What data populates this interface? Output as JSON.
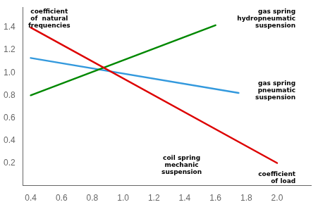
{
  "chart_data": {
    "type": "line",
    "series": [
      {
        "color": "#dd0000",
        "x": [
          0.4,
          2.0
        ],
        "values": [
          1.4,
          0.2
        ]
      },
      {
        "color": "#008800",
        "x": [
          0.4,
          1.6
        ],
        "values": [
          0.8,
          1.42
        ]
      },
      {
        "color": "#3399dd",
        "x": [
          0.4,
          1.75
        ],
        "values": [
          1.13,
          0.82
        ]
      }
    ],
    "xlim": [
      0.35,
      2.22
    ],
    "ylim": [
      0.0,
      1.58
    ],
    "xticks": [
      0.4,
      0.6,
      0.8,
      {
        "value": 1.0,
        "label": "1.0"
      },
      1.2,
      1.4,
      1.6,
      1.8,
      {
        "value": 2.0,
        "label": "2.0"
      }
    ],
    "yticks": [
      0.2,
      0.4,
      0.6,
      0.8,
      {
        "value": 1.0,
        "label": "1.0"
      },
      1.2,
      1.4
    ],
    "grid": false,
    "annotations": [
      {
        "text": "coefficient\nof  natural\nfrequencies",
        "x": 0.52,
        "y": 1.57
      },
      {
        "text": "gas spring\nhydropneumatic\nsuspension",
        "x": 2.12,
        "y": 1.57
      },
      {
        "text": "gas spring\npneumatic\nsuspension",
        "x": 2.12,
        "y": 0.93
      },
      {
        "text": "coil spring\nmechanic\nsuspension",
        "x": 1.38,
        "y": 0.27
      },
      {
        "text": "coefficient\nof load",
        "x": 2.12,
        "y": 0.13
      }
    ]
  }
}
